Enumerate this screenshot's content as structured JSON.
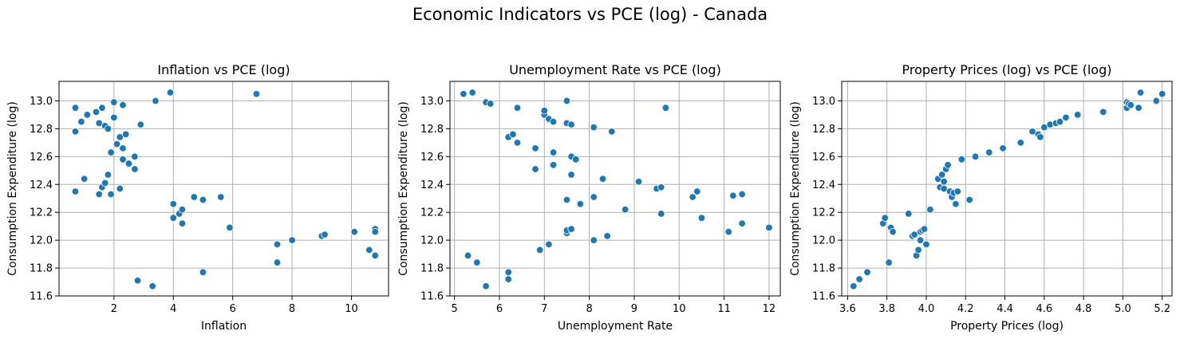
{
  "suptitle": "Economic Indicators vs PCE (log) - Canada",
  "colors": {
    "marker": "#1f77b4",
    "grid": "#b0b0b0"
  },
  "chart_data": [
    {
      "type": "scatter",
      "title": "Inflation vs PCE (log)",
      "xlabel": "Inflation",
      "ylabel": "Consumption Expenditure (log)",
      "xlim": [
        0.15,
        11.25
      ],
      "ylim": [
        11.6,
        13.14
      ],
      "xticks": [
        2,
        4,
        6,
        8,
        10
      ],
      "yticks": [
        11.6,
        11.8,
        12.0,
        12.2,
        12.4,
        12.6,
        12.8,
        13.0
      ],
      "grid": true,
      "points": [
        [
          0.7,
          12.95
        ],
        [
          0.7,
          12.78
        ],
        [
          0.7,
          12.35
        ],
        [
          0.9,
          12.85
        ],
        [
          1.0,
          12.44
        ],
        [
          1.1,
          12.9
        ],
        [
          1.4,
          12.92
        ],
        [
          1.5,
          12.33
        ],
        [
          1.5,
          12.84
        ],
        [
          1.6,
          12.38
        ],
        [
          1.6,
          12.95
        ],
        [
          1.7,
          12.41
        ],
        [
          1.7,
          12.82
        ],
        [
          1.8,
          12.47
        ],
        [
          1.8,
          12.8
        ],
        [
          1.9,
          12.33
        ],
        [
          1.9,
          12.63
        ],
        [
          2.0,
          12.88
        ],
        [
          2.0,
          12.99
        ],
        [
          2.1,
          12.69
        ],
        [
          2.2,
          12.74
        ],
        [
          2.2,
          12.37
        ],
        [
          2.3,
          12.66
        ],
        [
          2.3,
          12.58
        ],
        [
          2.3,
          12.97
        ],
        [
          2.4,
          12.76
        ],
        [
          2.5,
          12.55
        ],
        [
          2.7,
          12.51
        ],
        [
          2.7,
          12.6
        ],
        [
          2.8,
          11.71
        ],
        [
          2.9,
          12.83
        ],
        [
          3.3,
          11.67
        ],
        [
          3.4,
          13.0
        ],
        [
          3.9,
          13.06
        ],
        [
          4.0,
          12.16
        ],
        [
          4.0,
          12.26
        ],
        [
          4.2,
          12.19
        ],
        [
          4.3,
          12.12
        ],
        [
          4.3,
          12.22
        ],
        [
          4.7,
          12.31
        ],
        [
          5.0,
          11.77
        ],
        [
          5.0,
          12.29
        ],
        [
          5.6,
          12.31
        ],
        [
          5.9,
          12.09
        ],
        [
          6.8,
          13.05
        ],
        [
          7.5,
          11.84
        ],
        [
          7.5,
          11.97
        ],
        [
          8.0,
          12.0
        ],
        [
          9.0,
          12.03
        ],
        [
          9.1,
          12.04
        ],
        [
          10.1,
          12.06
        ],
        [
          10.6,
          11.93
        ],
        [
          10.8,
          12.08
        ],
        [
          10.8,
          12.06
        ],
        [
          10.8,
          11.89
        ]
      ]
    },
    {
      "type": "scatter",
      "title": "Unemployment Rate vs PCE (log)",
      "xlabel": "Unemployment Rate",
      "ylabel": "Consumption Expenditure (log)",
      "xlim": [
        4.9,
        12.25
      ],
      "ylim": [
        11.6,
        13.14
      ],
      "xticks": [
        5,
        6,
        7,
        8,
        9,
        10,
        11,
        12
      ],
      "yticks": [
        11.6,
        11.8,
        12.0,
        12.2,
        12.4,
        12.6,
        12.8,
        13.0
      ],
      "grid": true,
      "points": [
        [
          5.2,
          13.05
        ],
        [
          5.3,
          11.89
        ],
        [
          5.4,
          13.06
        ],
        [
          5.5,
          11.84
        ],
        [
          5.7,
          11.67
        ],
        [
          5.7,
          12.99
        ],
        [
          5.8,
          12.98
        ],
        [
          6.2,
          11.72
        ],
        [
          6.2,
          12.74
        ],
        [
          6.2,
          11.77
        ],
        [
          6.3,
          12.76
        ],
        [
          6.4,
          12.95
        ],
        [
          6.4,
          12.7
        ],
        [
          6.8,
          12.66
        ],
        [
          6.8,
          12.51
        ],
        [
          6.9,
          11.93
        ],
        [
          7.0,
          12.9
        ],
        [
          7.0,
          12.93
        ],
        [
          7.1,
          11.97
        ],
        [
          7.1,
          12.87
        ],
        [
          7.2,
          12.63
        ],
        [
          7.2,
          12.54
        ],
        [
          7.2,
          12.85
        ],
        [
          7.5,
          12.84
        ],
        [
          7.5,
          13.0
        ],
        [
          7.5,
          12.29
        ],
        [
          7.5,
          12.05
        ],
        [
          7.5,
          12.07
        ],
        [
          7.6,
          12.47
        ],
        [
          7.6,
          12.6
        ],
        [
          7.6,
          12.83
        ],
        [
          7.6,
          12.08
        ],
        [
          7.7,
          12.58
        ],
        [
          7.8,
          12.26
        ],
        [
          8.1,
          12.0
        ],
        [
          8.1,
          12.31
        ],
        [
          8.1,
          12.81
        ],
        [
          8.3,
          12.44
        ],
        [
          8.4,
          12.03
        ],
        [
          8.5,
          12.78
        ],
        [
          8.8,
          12.22
        ],
        [
          9.1,
          12.42
        ],
        [
          9.5,
          12.37
        ],
        [
          9.6,
          12.38
        ],
        [
          9.6,
          12.19
        ],
        [
          9.7,
          12.95
        ],
        [
          10.3,
          12.31
        ],
        [
          10.4,
          12.35
        ],
        [
          10.5,
          12.16
        ],
        [
          11.1,
          12.06
        ],
        [
          11.2,
          12.32
        ],
        [
          11.4,
          12.33
        ],
        [
          11.4,
          12.12
        ],
        [
          12.0,
          12.09
        ]
      ]
    },
    {
      "type": "scatter",
      "title": "Property Prices (log) vs PCE (log)",
      "xlabel": "Property Prices (log)",
      "ylabel": "Consumption Expenditure (log)",
      "xlim": [
        3.57,
        5.25
      ],
      "ylim": [
        11.6,
        13.14
      ],
      "xticks": [
        3.6,
        3.8,
        4.0,
        4.2,
        4.4,
        4.6,
        4.8,
        5.0,
        5.2
      ],
      "yticks": [
        11.6,
        11.8,
        12.0,
        12.2,
        12.4,
        12.6,
        12.8,
        13.0
      ],
      "grid": true,
      "points": [
        [
          3.63,
          11.67
        ],
        [
          3.66,
          11.72
        ],
        [
          3.7,
          11.77
        ],
        [
          3.78,
          12.12
        ],
        [
          3.79,
          12.16
        ],
        [
          3.81,
          11.84
        ],
        [
          3.82,
          12.09
        ],
        [
          3.83,
          12.06
        ],
        [
          3.91,
          12.19
        ],
        [
          3.93,
          12.03
        ],
        [
          3.94,
          12.04
        ],
        [
          3.95,
          11.89
        ],
        [
          3.96,
          11.93
        ],
        [
          3.97,
          12.06
        ],
        [
          3.97,
          12.0
        ],
        [
          3.98,
          12.07
        ],
        [
          3.99,
          12.08
        ],
        [
          4.0,
          11.97
        ],
        [
          4.02,
          12.22
        ],
        [
          4.06,
          12.44
        ],
        [
          4.07,
          12.38
        ],
        [
          4.08,
          12.47
        ],
        [
          4.09,
          12.42
        ],
        [
          4.09,
          12.37
        ],
        [
          4.1,
          12.51
        ],
        [
          4.11,
          12.54
        ],
        [
          4.12,
          12.35
        ],
        [
          4.13,
          12.31
        ],
        [
          4.14,
          12.34
        ],
        [
          4.15,
          12.26
        ],
        [
          4.16,
          12.35
        ],
        [
          4.18,
          12.58
        ],
        [
          4.22,
          12.29
        ],
        [
          4.25,
          12.6
        ],
        [
          4.32,
          12.63
        ],
        [
          4.39,
          12.66
        ],
        [
          4.48,
          12.7
        ],
        [
          4.54,
          12.78
        ],
        [
          4.57,
          12.76
        ],
        [
          4.58,
          12.74
        ],
        [
          4.6,
          12.81
        ],
        [
          4.63,
          12.83
        ],
        [
          4.66,
          12.84
        ],
        [
          4.68,
          12.85
        ],
        [
          4.71,
          12.88
        ],
        [
          4.77,
          12.9
        ],
        [
          4.9,
          12.92
        ],
        [
          5.02,
          12.95
        ],
        [
          5.02,
          12.99
        ],
        [
          5.03,
          12.98
        ],
        [
          5.04,
          12.97
        ],
        [
          5.08,
          12.95
        ],
        [
          5.09,
          13.06
        ],
        [
          5.17,
          13.0
        ],
        [
          5.2,
          13.05
        ]
      ]
    }
  ]
}
